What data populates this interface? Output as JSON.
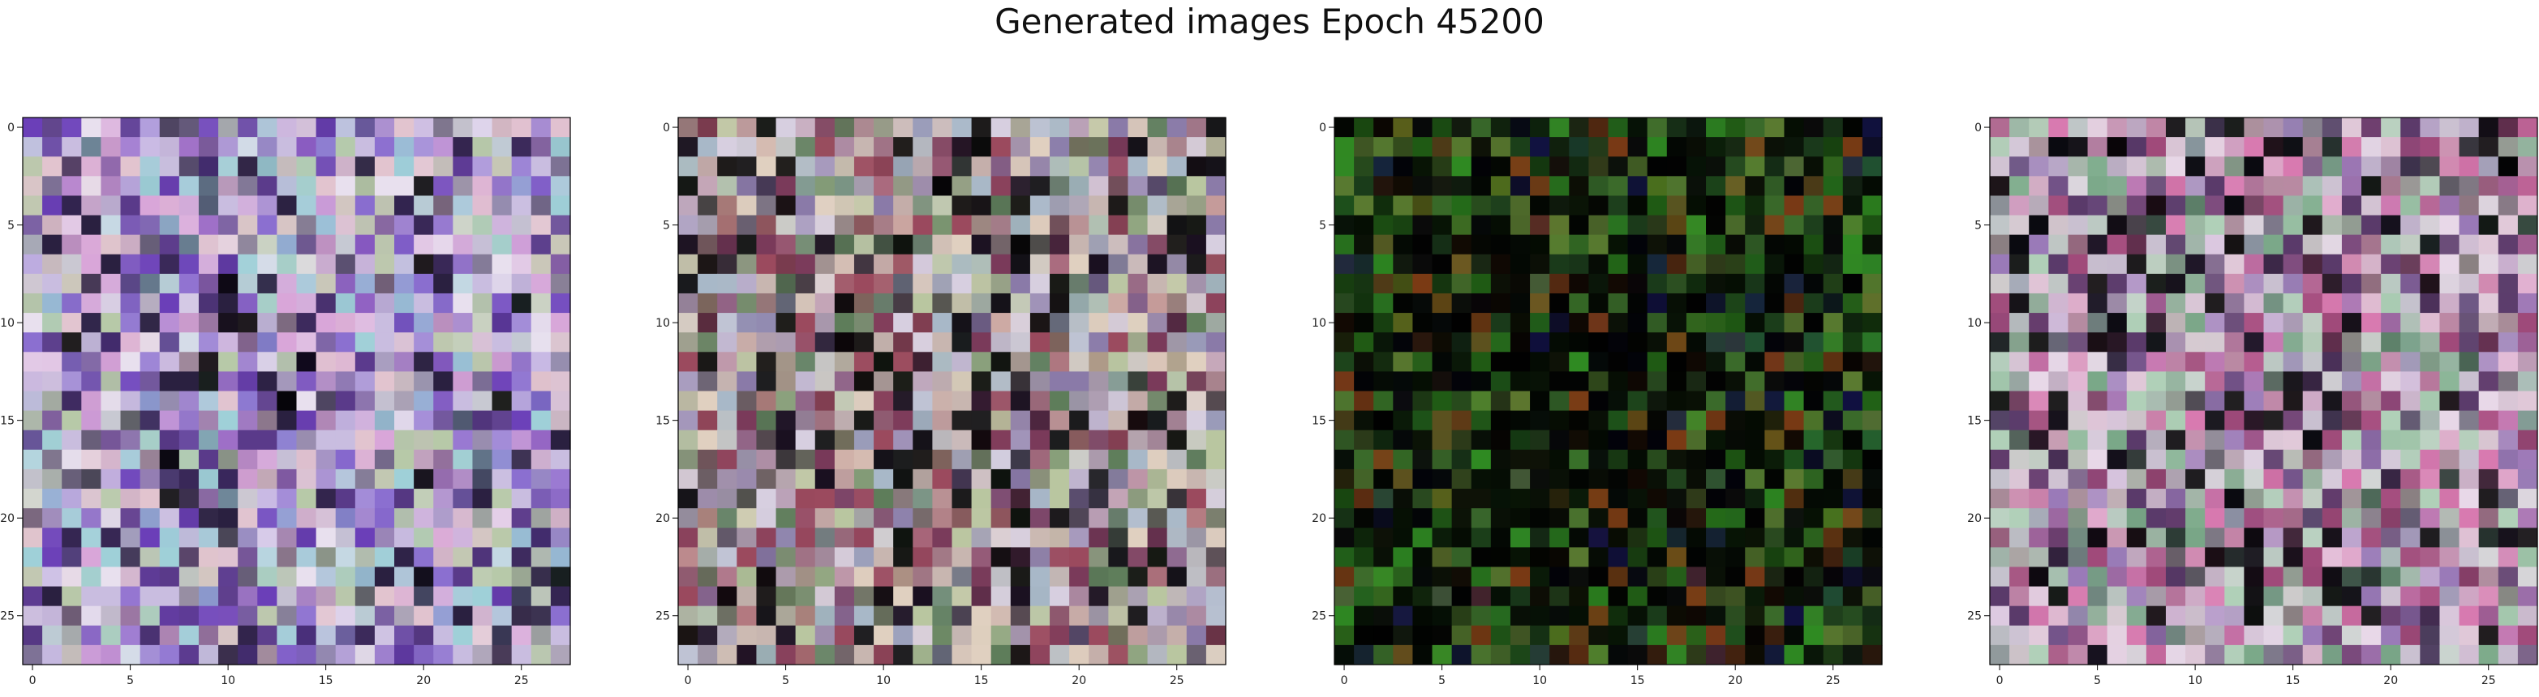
{
  "title": "Generated images Epoch 45200",
  "chart_data": [
    {
      "type": "heatmap",
      "title": "",
      "xlabel": "",
      "ylabel": "",
      "xlim": [
        0,
        27
      ],
      "ylim": [
        27,
        0
      ],
      "xticks": [
        0,
        5,
        10,
        15,
        20,
        25
      ],
      "yticks": [
        0,
        5,
        10,
        15,
        20,
        25
      ],
      "grid_size": [
        28,
        28
      ],
      "palette": [
        "#c9bde0",
        "#8b6fd0",
        "#6b3fb8",
        "#e8e0ee",
        "#d9a6d9",
        "#9fd0d8",
        "#e2c4cf",
        "#5a3a8a",
        "#b7c9a8",
        "#2a2040"
      ],
      "noise_seed": 11,
      "note_dark_rate": 0.04
    },
    {
      "type": "heatmap",
      "title": "",
      "xlabel": "",
      "ylabel": "",
      "xlim": [
        0,
        27
      ],
      "ylim": [
        27,
        0
      ],
      "xticks": [
        0,
        5,
        10,
        15,
        20,
        25
      ],
      "yticks": [
        0,
        5,
        10,
        15,
        20,
        25
      ],
      "grid_size": [
        28,
        28
      ],
      "palette": [
        "#c8b6b0",
        "#8a7aa8",
        "#b9c6a0",
        "#7a3a5a",
        "#d7cfe0",
        "#5e7d5a",
        "#a8b8c8",
        "#9b4a5e",
        "#1a1020",
        "#e0d0c0"
      ],
      "noise_seed": 23,
      "note_dark_rate": 0.1
    },
    {
      "type": "heatmap",
      "title": "",
      "xlabel": "",
      "ylabel": "",
      "xlim": [
        0,
        27
      ],
      "ylim": [
        27,
        0
      ],
      "xticks": [
        0,
        5,
        10,
        15,
        20,
        25
      ],
      "yticks": [
        0,
        5,
        10,
        15,
        20,
        25
      ],
      "grid_size": [
        28,
        28
      ],
      "palette": [
        "#1f5a14",
        "#2f8a22",
        "#0a1a08",
        "#050808",
        "#3a6a2a",
        "#101040",
        "#5a7a30",
        "#7a3a14",
        "#0a0a0a",
        "#1a3a1a"
      ],
      "noise_seed": 37,
      "note_dark_rate": 0.35
    },
    {
      "type": "heatmap",
      "title": "",
      "xlabel": "",
      "ylabel": "",
      "xlim": [
        0,
        27
      ],
      "ylim": [
        27,
        0
      ],
      "xticks": [
        0,
        5,
        10,
        15,
        20,
        25
      ],
      "yticks": [
        0,
        5,
        10,
        15,
        20,
        25
      ],
      "grid_size": [
        28,
        28
      ],
      "palette": [
        "#c9c0d0",
        "#9a7ab8",
        "#e0c8d8",
        "#7aa888",
        "#d87ab0",
        "#b0d0b8",
        "#5a3a6a",
        "#e8d8e8",
        "#0a0a10",
        "#a04a7a"
      ],
      "noise_seed": 51,
      "note_dark_rate": 0.08
    }
  ]
}
